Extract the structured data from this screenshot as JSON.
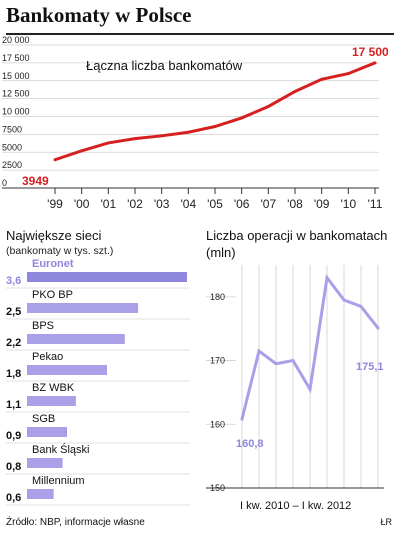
{
  "title": "Bankomaty w Polsce",
  "source": "Źródło: NBP, informacje własne",
  "initials": "ŁR",
  "colors": {
    "red": "#d62020",
    "purple": "#a9a0e8",
    "purple_dark": "#8f86de",
    "grid": "#cfcfcf"
  },
  "chart_data": [
    {
      "type": "line",
      "title": "Łączna liczba bankomatów",
      "categories": [
        "'99",
        "'00",
        "'01",
        "'02",
        "'03",
        "'04",
        "'05",
        "'06",
        "'07",
        "'08",
        "'09",
        "'10",
        "'11"
      ],
      "values": [
        3949,
        5200,
        6300,
        6900,
        7300,
        7800,
        8600,
        9800,
        11400,
        13500,
        15200,
        16000,
        17500
      ],
      "ylim": [
        0,
        20000
      ],
      "yticks": [
        "0",
        "2500",
        "5000",
        "7500",
        "10 000",
        "12 500",
        "15 000",
        "17 500",
        "20 000"
      ],
      "annotations": {
        "start": "3949",
        "end": "17 500"
      },
      "grid": true
    },
    {
      "type": "bar",
      "title": "Największe sieci",
      "subtitle": "(bankomaty w tys. szt.)",
      "categories": [
        "Euronet",
        "PKO BP",
        "BPS",
        "Pekao",
        "BZ WBK",
        "SGB",
        "Bank Śląski",
        "Millennium"
      ],
      "labels": [
        "3,6",
        "2,5",
        "2,2",
        "1,8",
        "1,1",
        "0,9",
        "0,8",
        "0,6"
      ],
      "values": [
        3.6,
        2.5,
        2.2,
        1.8,
        1.1,
        0.9,
        0.8,
        0.6
      ]
    },
    {
      "type": "line",
      "title": "Liczba operacji w bankomatach",
      "ylabel": "(mln)",
      "xlabel": "I kw. 2010 – I kw. 2012",
      "values": [
        160.8,
        171.5,
        169.5,
        170.0,
        165.5,
        183.0,
        179.5,
        178.5,
        175.1
      ],
      "ylim": [
        150,
        185
      ],
      "yticks": [
        "150",
        "160",
        "170",
        "180"
      ],
      "annotations": {
        "start": "160,8",
        "end": "175,1"
      },
      "grid": true
    }
  ]
}
